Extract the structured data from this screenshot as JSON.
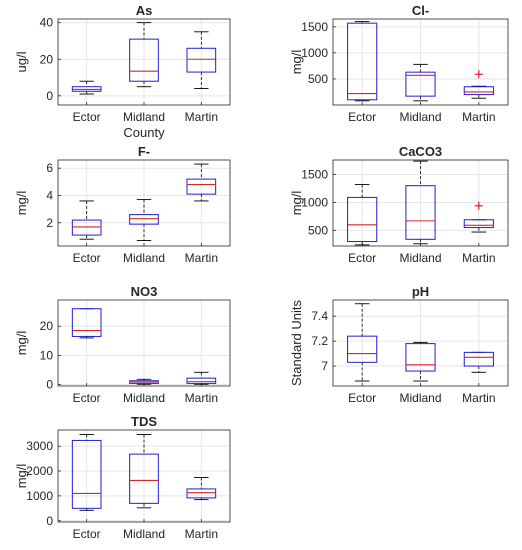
{
  "colors": {
    "box": "#1f1fd6",
    "median": "#d62728",
    "whisker": "#000000",
    "outlier": "#e8162b",
    "grid": "#e6e6e6",
    "axis": "#262626"
  },
  "chart_data": [
    {
      "type": "box",
      "title": "As",
      "xlabel": "County",
      "ylabel": "ug/l",
      "categories": [
        "Ector",
        "Midland",
        "Martin"
      ],
      "yticks": [
        0,
        20,
        40
      ],
      "ylim": [
        -5,
        42
      ],
      "grid": true,
      "boxes": [
        {
          "min": 1,
          "q1": 2.5,
          "median": 3.5,
          "q3": 5,
          "max": 8,
          "outliers": []
        },
        {
          "min": 5,
          "q1": 8,
          "median": 13.5,
          "q3": 31,
          "max": 40,
          "outliers": []
        },
        {
          "min": 4,
          "q1": 13,
          "median": 20,
          "q3": 26,
          "max": 35,
          "outliers": []
        }
      ]
    },
    {
      "type": "box",
      "title": "Cl-",
      "xlabel": "",
      "ylabel": "mg/l",
      "categories": [
        "Ector",
        "Midland",
        "Martin"
      ],
      "yticks": [
        500,
        1000,
        1500
      ],
      "ylim": [
        0,
        1650
      ],
      "grid": true,
      "boxes": [
        {
          "min": 80,
          "q1": 100,
          "median": 220,
          "q3": 1570,
          "max": 1600,
          "outliers": []
        },
        {
          "min": 80,
          "q1": 170,
          "median": 570,
          "q3": 630,
          "max": 780,
          "outliers": []
        },
        {
          "min": 130,
          "q1": 200,
          "median": 250,
          "q3": 350,
          "max": 360,
          "outliers": [
            590
          ]
        }
      ]
    },
    {
      "type": "box",
      "title": "F-",
      "xlabel": "",
      "ylabel": "mg/l",
      "categories": [
        "Ector",
        "Midland",
        "Martin"
      ],
      "yticks": [
        2,
        4,
        6
      ],
      "ylim": [
        0.3,
        6.6
      ],
      "grid": true,
      "boxes": [
        {
          "min": 0.8,
          "q1": 1.1,
          "median": 1.7,
          "q3": 2.2,
          "max": 3.6,
          "outliers": []
        },
        {
          "min": 0.7,
          "q1": 1.9,
          "median": 2.3,
          "q3": 2.6,
          "max": 3.7,
          "outliers": []
        },
        {
          "min": 3.6,
          "q1": 4.1,
          "median": 4.8,
          "q3": 5.2,
          "max": 6.3,
          "outliers": []
        }
      ]
    },
    {
      "type": "box",
      "title": "CaCO3",
      "xlabel": "",
      "ylabel": "mg/l",
      "categories": [
        "Ector",
        "Midland",
        "Martin"
      ],
      "yticks": [
        500,
        1000,
        1500
      ],
      "ylim": [
        220,
        1760
      ],
      "grid": true,
      "boxes": [
        {
          "min": 240,
          "q1": 300,
          "median": 600,
          "q3": 1090,
          "max": 1320,
          "outliers": []
        },
        {
          "min": 260,
          "q1": 340,
          "median": 670,
          "q3": 1300,
          "max": 1740,
          "outliers": []
        },
        {
          "min": 470,
          "q1": 550,
          "median": 590,
          "q3": 690,
          "max": 690,
          "outliers": [
            940
          ]
        }
      ]
    },
    {
      "type": "box",
      "title": "NO3",
      "xlabel": "",
      "ylabel": "mg/l",
      "categories": [
        "Ector",
        "Midland",
        "Martin"
      ],
      "yticks": [
        0,
        10,
        20
      ],
      "ylim": [
        -0.5,
        29
      ],
      "grid": true,
      "boxes": [
        {
          "min": 16,
          "q1": 16.5,
          "median": 18.5,
          "q3": 26,
          "max": 26,
          "outliers": []
        },
        {
          "min": 0.1,
          "q1": 0.4,
          "median": 0.9,
          "q3": 1.3,
          "max": 1.8,
          "outliers": []
        },
        {
          "min": 0.1,
          "q1": 0.4,
          "median": 1.0,
          "q3": 2.2,
          "max": 4.2,
          "outliers": []
        }
      ]
    },
    {
      "type": "box",
      "title": "pH",
      "xlabel": "",
      "ylabel": "Standard Units",
      "categories": [
        "Ector",
        "Midland",
        "Martin"
      ],
      "yticks": [
        7,
        7.2,
        7.4
      ],
      "ylim": [
        6.84,
        7.53
      ],
      "grid": true,
      "boxes": [
        {
          "min": 6.88,
          "q1": 7.03,
          "median": 7.1,
          "q3": 7.24,
          "max": 7.5,
          "outliers": []
        },
        {
          "min": 6.88,
          "q1": 6.96,
          "median": 7.01,
          "q3": 7.18,
          "max": 7.19,
          "outliers": []
        },
        {
          "min": 6.95,
          "q1": 7.0,
          "median": 7.07,
          "q3": 7.11,
          "max": 7.11,
          "outliers": []
        }
      ]
    },
    {
      "type": "box",
      "title": "TDS",
      "xlabel": "",
      "ylabel": "mg/l",
      "categories": [
        "Ector",
        "Midland",
        "Martin"
      ],
      "yticks": [
        0,
        1000,
        2000,
        3000
      ],
      "ylim": [
        -50,
        3650
      ],
      "grid": true,
      "boxes": [
        {
          "min": 420,
          "q1": 500,
          "median": 1100,
          "q3": 3230,
          "max": 3470,
          "outliers": []
        },
        {
          "min": 520,
          "q1": 700,
          "median": 1620,
          "q3": 2680,
          "max": 3470,
          "outliers": []
        },
        {
          "min": 850,
          "q1": 920,
          "median": 1130,
          "q3": 1280,
          "max": 1740,
          "outliers": []
        }
      ]
    }
  ]
}
